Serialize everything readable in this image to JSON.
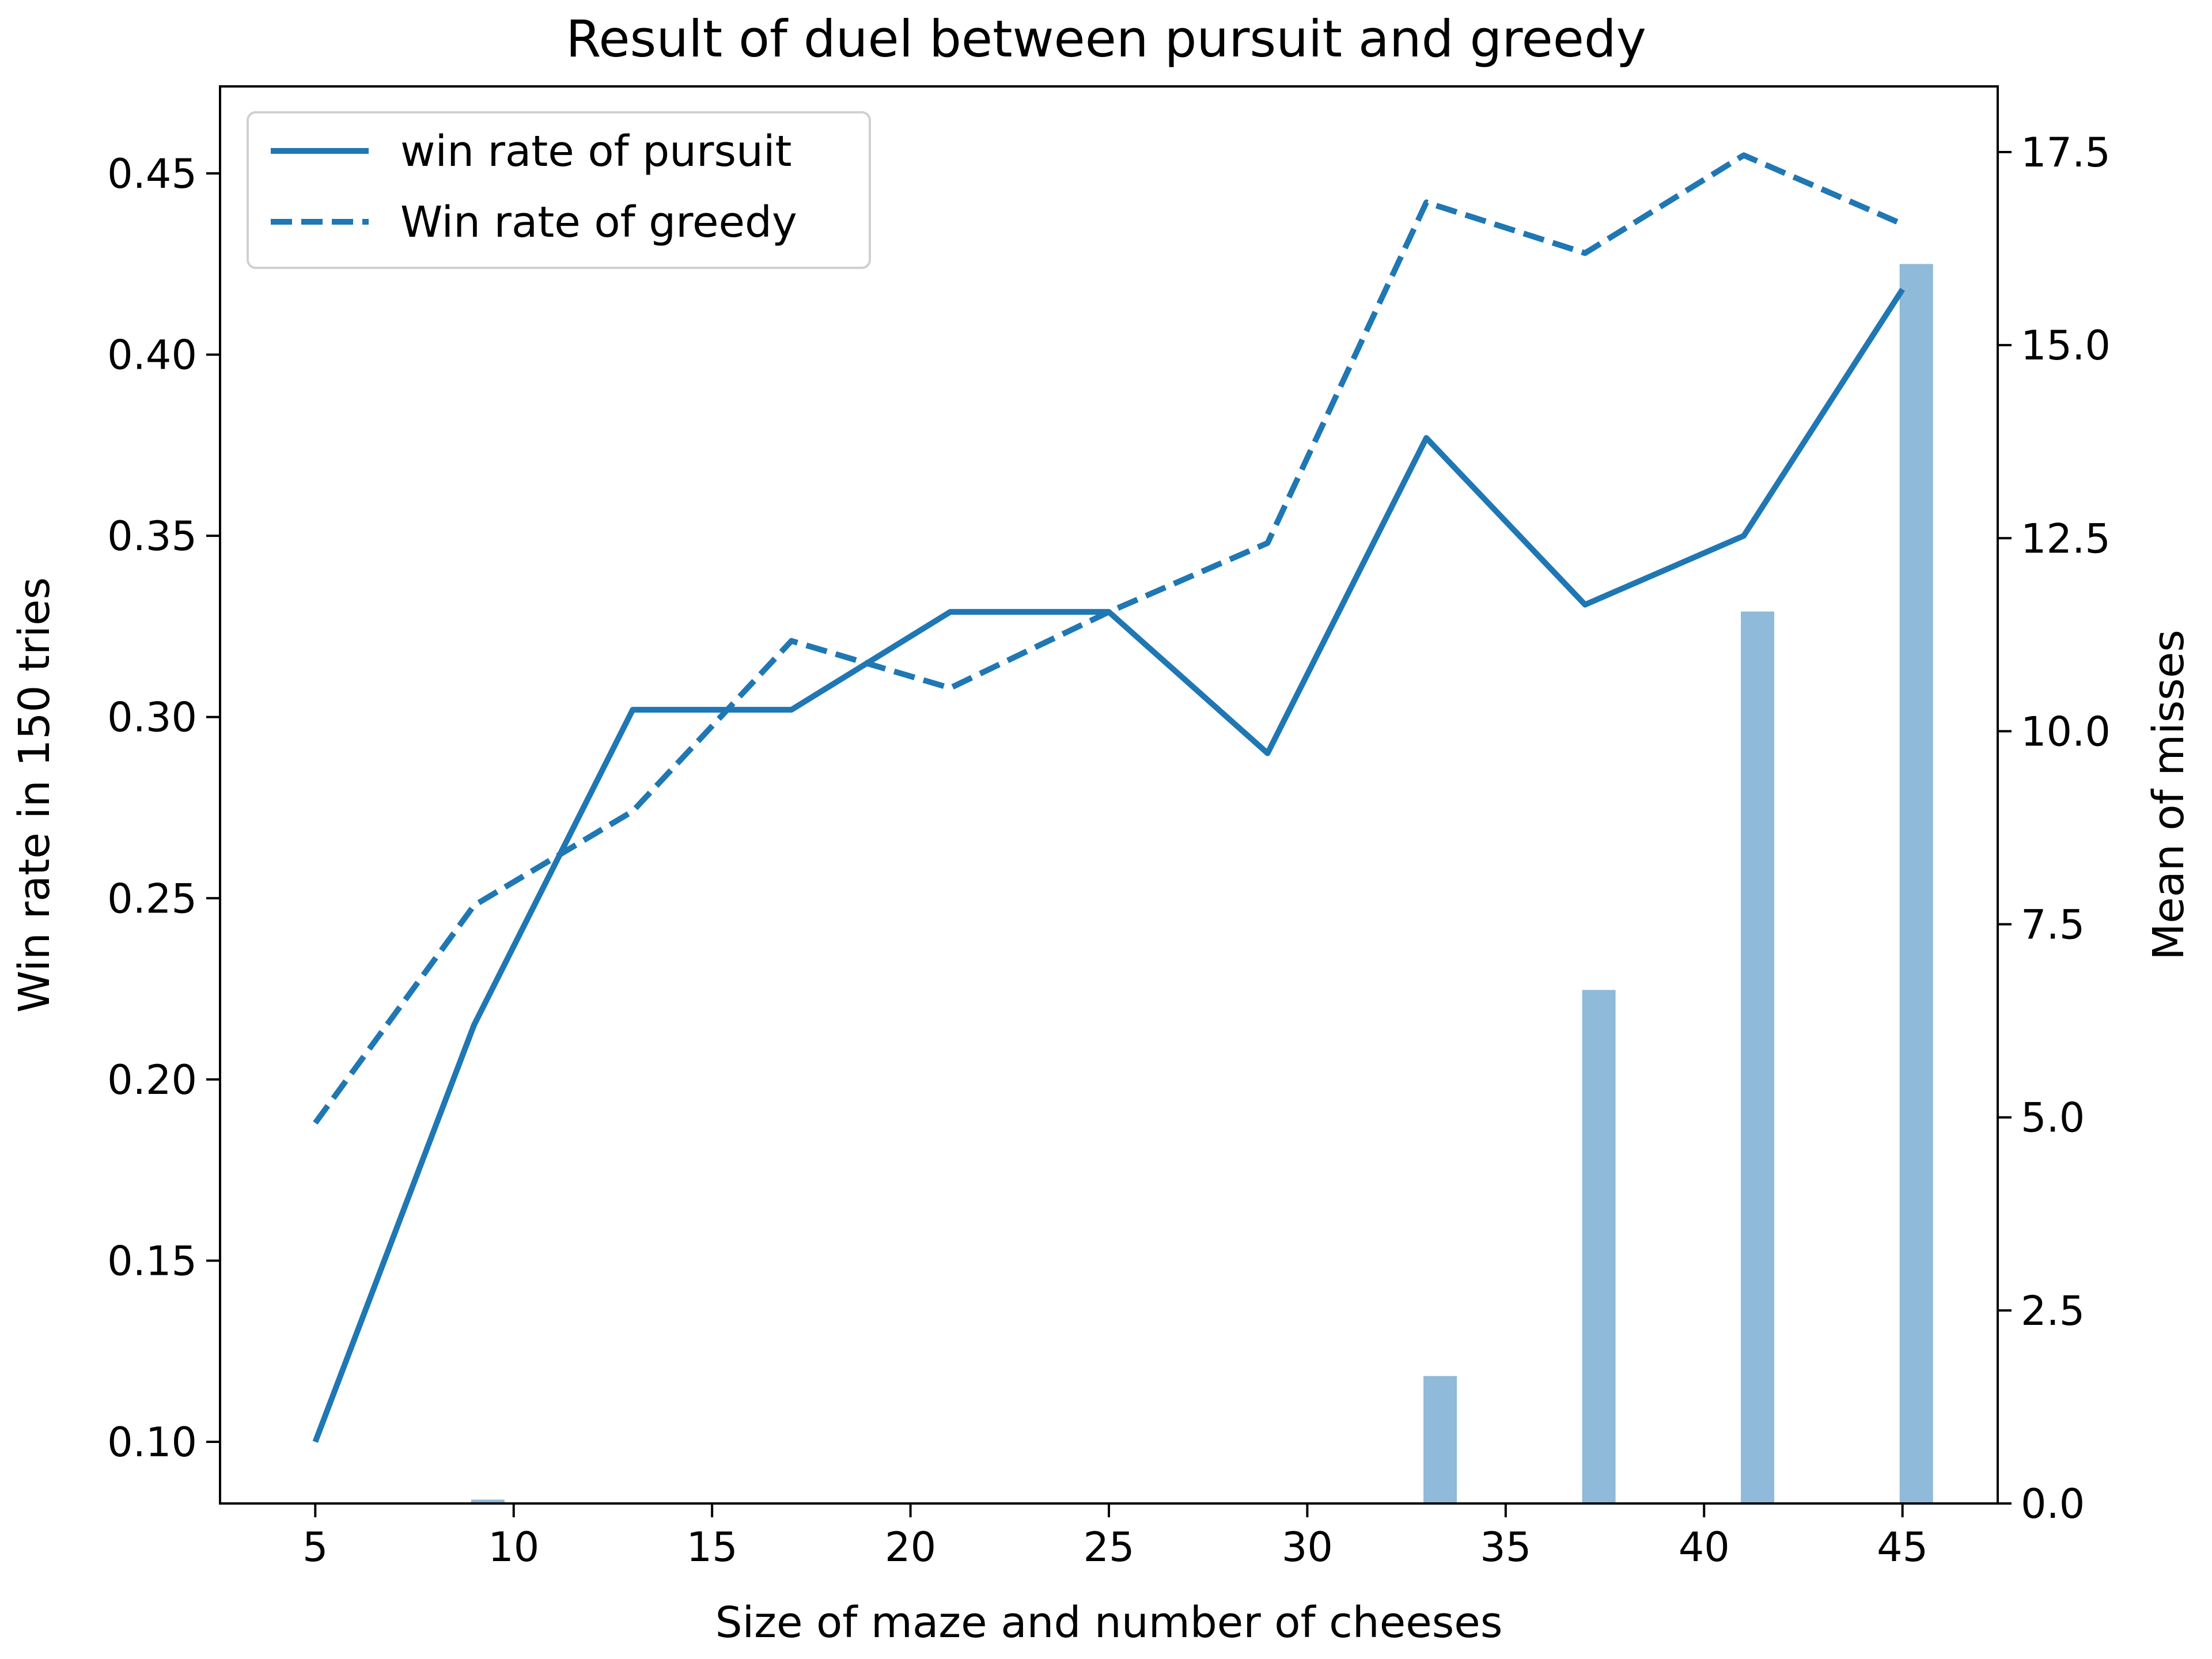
{
  "chart_data": {
    "type": "line",
    "title": "Result of duel between pursuit and greedy",
    "xlabel": "Size of maze and number of cheeses",
    "ylabel": "Win rate in 150 tries",
    "y2label": "Mean of misses",
    "xlim": [
      2.6,
      47.4
    ],
    "ylim": [
      0.083,
      0.474
    ],
    "y2lim": [
      0.0,
      18.35
    ],
    "xticks": [
      "5",
      "10",
      "15",
      "20",
      "25",
      "30",
      "35",
      "40",
      "45"
    ],
    "xtick_values": [
      5,
      10,
      15,
      20,
      25,
      30,
      35,
      40,
      45
    ],
    "yticks": [
      "0.10",
      "0.15",
      "0.20",
      "0.25",
      "0.30",
      "0.35",
      "0.40",
      "0.45"
    ],
    "ytick_values": [
      0.1,
      0.15,
      0.2,
      0.25,
      0.3,
      0.35,
      0.4,
      0.45
    ],
    "y2ticks": [
      "0.0",
      "2.5",
      "5.0",
      "7.5",
      "10.0",
      "12.5",
      "15.0",
      "17.5"
    ],
    "y2tick_values": [
      0.0,
      2.5,
      5.0,
      7.5,
      10.0,
      12.5,
      15.0,
      17.5
    ],
    "x": [
      5,
      9,
      13,
      17,
      21,
      25,
      29,
      33,
      37,
      41,
      45
    ],
    "series": [
      {
        "name": "win rate of pursuit",
        "style": "solid",
        "axis": "left",
        "color": "#1f77b4",
        "values": [
          0.1,
          0.215,
          0.302,
          0.302,
          0.329,
          0.329,
          0.29,
          0.377,
          0.331,
          0.35,
          0.418
        ]
      },
      {
        "name": "Win rate of greedy",
        "style": "dashed",
        "axis": "left",
        "color": "#1f77b4",
        "values": [
          0.188,
          0.248,
          0.274,
          0.321,
          0.308,
          0.329,
          0.348,
          0.442,
          0.428,
          0.455,
          0.436
        ]
      },
      {
        "name": "",
        "type": "bar",
        "axis": "right",
        "color": "#8fbad9",
        "values": [
          0.0,
          0.05,
          0.0,
          0.0,
          0.0,
          0.0,
          0.0,
          1.65,
          6.65,
          11.55,
          16.05
        ]
      }
    ],
    "legend": "top-left",
    "grid": false
  }
}
